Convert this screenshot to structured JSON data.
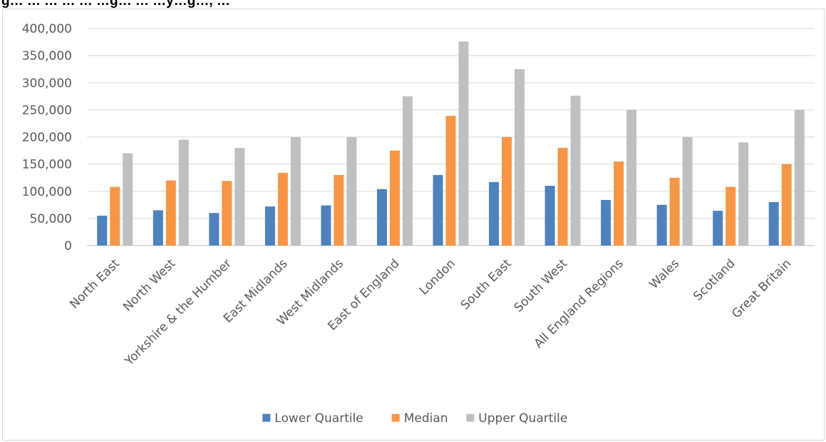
{
  "figure": {
    "title": "g… … … … … …g… … …y…g…, …"
  },
  "chart_data": {
    "type": "bar",
    "categories": [
      "North East",
      "North West",
      "Yorkshire & the Humber",
      "East Midlands",
      "West Midlands",
      "East of England",
      "London",
      "South East",
      "South West",
      "All England Regions",
      "Wales",
      "Scotland",
      "Great Britain"
    ],
    "series": [
      {
        "name": "Lower Quartile",
        "color": "#4f81bd",
        "values": [
          55000,
          65000,
          60000,
          72000,
          74000,
          104000,
          130000,
          117000,
          110000,
          84000,
          75000,
          64000,
          80000
        ]
      },
      {
        "name": "Median",
        "color": "#f79646",
        "values": [
          108000,
          120000,
          119000,
          134000,
          130000,
          175000,
          239000,
          200000,
          180000,
          155000,
          125000,
          108000,
          150000
        ]
      },
      {
        "name": "Upper Quartile",
        "color": "#bfbfbf",
        "values": [
          170000,
          195000,
          180000,
          200000,
          200000,
          275000,
          376000,
          325000,
          276000,
          250000,
          200000,
          190000,
          250000
        ]
      }
    ],
    "ylim": [
      0,
      400000
    ],
    "yticks": [
      "0",
      "50,000",
      "100,000",
      "150,000",
      "200,000",
      "250,000",
      "300,000",
      "350,000",
      "400,000"
    ],
    "grid": true,
    "legend": "bottom",
    "xlabel": "",
    "ylabel": ""
  }
}
